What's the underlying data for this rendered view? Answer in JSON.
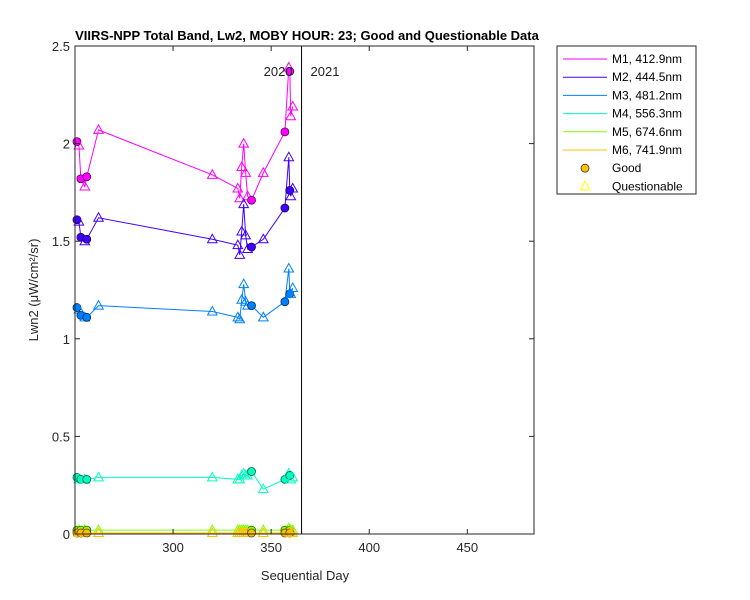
{
  "chart_data": {
    "type": "line",
    "title": "VIIRS-NPP Total Band, Lw2, MOBY HOUR: 23;  Good and Questionable Data",
    "xlabel": "Sequential Day",
    "ylabel": "Lwn2 (μW/cm²/sr)",
    "xlim": [
      250,
      484
    ],
    "ylim": [
      0,
      2.5
    ],
    "xticks": [
      300,
      350,
      400,
      450
    ],
    "yticks": [
      0,
      0.5,
      1,
      1.5,
      2,
      2.5
    ],
    "ytick_labels": [
      "0",
      "0.5",
      "1",
      "1.5",
      "2",
      "2.5"
    ],
    "grid": false,
    "legend_position": "outside-top-right",
    "year_boundary": {
      "x": 365.5,
      "left_label": "2020",
      "right_label": "2021"
    },
    "marker_legend": [
      {
        "label": "Good",
        "marker": "circle",
        "color": "#ffc000"
      },
      {
        "label": "Questionable",
        "marker": "triangle",
        "color": "#ffff00"
      }
    ],
    "series": [
      {
        "name": "M1, 412.9nm",
        "color": "#ff00ff",
        "x": [
          251,
          252,
          253,
          255,
          256,
          262,
          320,
          333,
          334,
          335,
          336,
          337,
          338,
          340,
          346,
          357,
          359,
          359.5,
          360,
          361
        ],
        "y": [
          2.01,
          1.99,
          1.82,
          1.78,
          1.83,
          2.07,
          1.84,
          1.77,
          1.72,
          1.88,
          2.0,
          1.85,
          1.73,
          1.71,
          1.85,
          2.06,
          2.39,
          2.37,
          2.14,
          2.19
        ],
        "quality": [
          "Good",
          "Questionable",
          "Good",
          "Questionable",
          "Good",
          "Questionable",
          "Questionable",
          "Questionable",
          "Questionable",
          "Questionable",
          "Questionable",
          "Questionable",
          "Questionable",
          "Good",
          "Questionable",
          "Good",
          "Questionable",
          "Good",
          "Questionable",
          "Questionable"
        ]
      },
      {
        "name": "M2, 444.5nm",
        "color": "#4000ff",
        "x": [
          251,
          252,
          253,
          255,
          256,
          262,
          320,
          333,
          334,
          335,
          336,
          337,
          338,
          340,
          346,
          357,
          359,
          359.5,
          360,
          361
        ],
        "y": [
          1.61,
          1.6,
          1.52,
          1.5,
          1.51,
          1.62,
          1.51,
          1.48,
          1.43,
          1.55,
          1.69,
          1.53,
          1.46,
          1.47,
          1.51,
          1.67,
          1.93,
          1.76,
          1.73,
          1.77
        ],
        "quality": [
          "Good",
          "Questionable",
          "Good",
          "Questionable",
          "Good",
          "Questionable",
          "Questionable",
          "Questionable",
          "Questionable",
          "Questionable",
          "Questionable",
          "Questionable",
          "Questionable",
          "Good",
          "Questionable",
          "Good",
          "Questionable",
          "Good",
          "Questionable",
          "Questionable"
        ]
      },
      {
        "name": "M3, 481.2nm",
        "color": "#0080ff",
        "x": [
          251,
          252,
          253,
          255,
          256,
          262,
          320,
          333,
          334,
          335,
          336,
          337,
          338,
          340,
          346,
          357,
          359,
          359.5,
          360,
          361
        ],
        "y": [
          1.16,
          1.15,
          1.12,
          1.11,
          1.11,
          1.17,
          1.14,
          1.11,
          1.1,
          1.2,
          1.28,
          1.19,
          1.17,
          1.17,
          1.11,
          1.19,
          1.36,
          1.23,
          1.23,
          1.26
        ],
        "quality": [
          "Good",
          "Questionable",
          "Good",
          "Questionable",
          "Good",
          "Questionable",
          "Questionable",
          "Questionable",
          "Questionable",
          "Questionable",
          "Questionable",
          "Questionable",
          "Questionable",
          "Good",
          "Questionable",
          "Good",
          "Questionable",
          "Good",
          "Questionable",
          "Questionable"
        ]
      },
      {
        "name": "M4, 556.3nm",
        "color": "#00ffc0",
        "x": [
          251,
          252,
          253,
          255,
          256,
          262,
          320,
          333,
          334,
          335,
          336,
          337,
          338,
          340,
          346,
          357,
          359,
          359.5,
          360,
          361
        ],
        "y": [
          0.29,
          0.28,
          0.28,
          0.28,
          0.28,
          0.29,
          0.29,
          0.28,
          0.28,
          0.3,
          0.31,
          0.3,
          0.3,
          0.32,
          0.23,
          0.28,
          0.31,
          0.3,
          0.28,
          0.29
        ],
        "quality": [
          "Good",
          "Questionable",
          "Good",
          "Questionable",
          "Good",
          "Questionable",
          "Questionable",
          "Questionable",
          "Questionable",
          "Questionable",
          "Questionable",
          "Questionable",
          "Questionable",
          "Good",
          "Questionable",
          "Good",
          "Questionable",
          "Good",
          "Questionable",
          "Questionable"
        ]
      },
      {
        "name": "M5, 674.6nm",
        "color": "#80ff00",
        "x": [
          251,
          252,
          253,
          255,
          256,
          262,
          320,
          333,
          334,
          335,
          336,
          337,
          338,
          340,
          346,
          357,
          359,
          359.5,
          360,
          361
        ],
        "y": [
          0.02,
          0.02,
          0.02,
          0.02,
          0.02,
          0.02,
          0.02,
          0.02,
          0.02,
          0.02,
          0.02,
          0.02,
          0.02,
          0.02,
          0.02,
          0.02,
          0.03,
          0.02,
          0.02,
          0.02
        ],
        "quality": [
          "Good",
          "Questionable",
          "Good",
          "Questionable",
          "Good",
          "Questionable",
          "Questionable",
          "Questionable",
          "Questionable",
          "Questionable",
          "Questionable",
          "Questionable",
          "Questionable",
          "Good",
          "Questionable",
          "Good",
          "Questionable",
          "Good",
          "Questionable",
          "Questionable"
        ]
      },
      {
        "name": "M6, 741.9nm",
        "color": "#ffc000",
        "x": [
          251,
          252,
          253,
          255,
          256,
          262,
          320,
          333,
          334,
          335,
          336,
          337,
          338,
          340,
          346,
          357,
          359,
          359.5,
          360,
          361
        ],
        "y": [
          0.005,
          0.005,
          0.005,
          0.005,
          0.005,
          0.005,
          0.005,
          0.005,
          0.005,
          0.005,
          0.005,
          0.005,
          0.005,
          0.005,
          0.005,
          0.005,
          0.008,
          0.005,
          0.005,
          0.005
        ],
        "quality": [
          "Good",
          "Questionable",
          "Good",
          "Questionable",
          "Good",
          "Questionable",
          "Questionable",
          "Questionable",
          "Questionable",
          "Questionable",
          "Questionable",
          "Questionable",
          "Questionable",
          "Good",
          "Questionable",
          "Good",
          "Questionable",
          "Good",
          "Questionable",
          "Questionable"
        ]
      }
    ]
  }
}
